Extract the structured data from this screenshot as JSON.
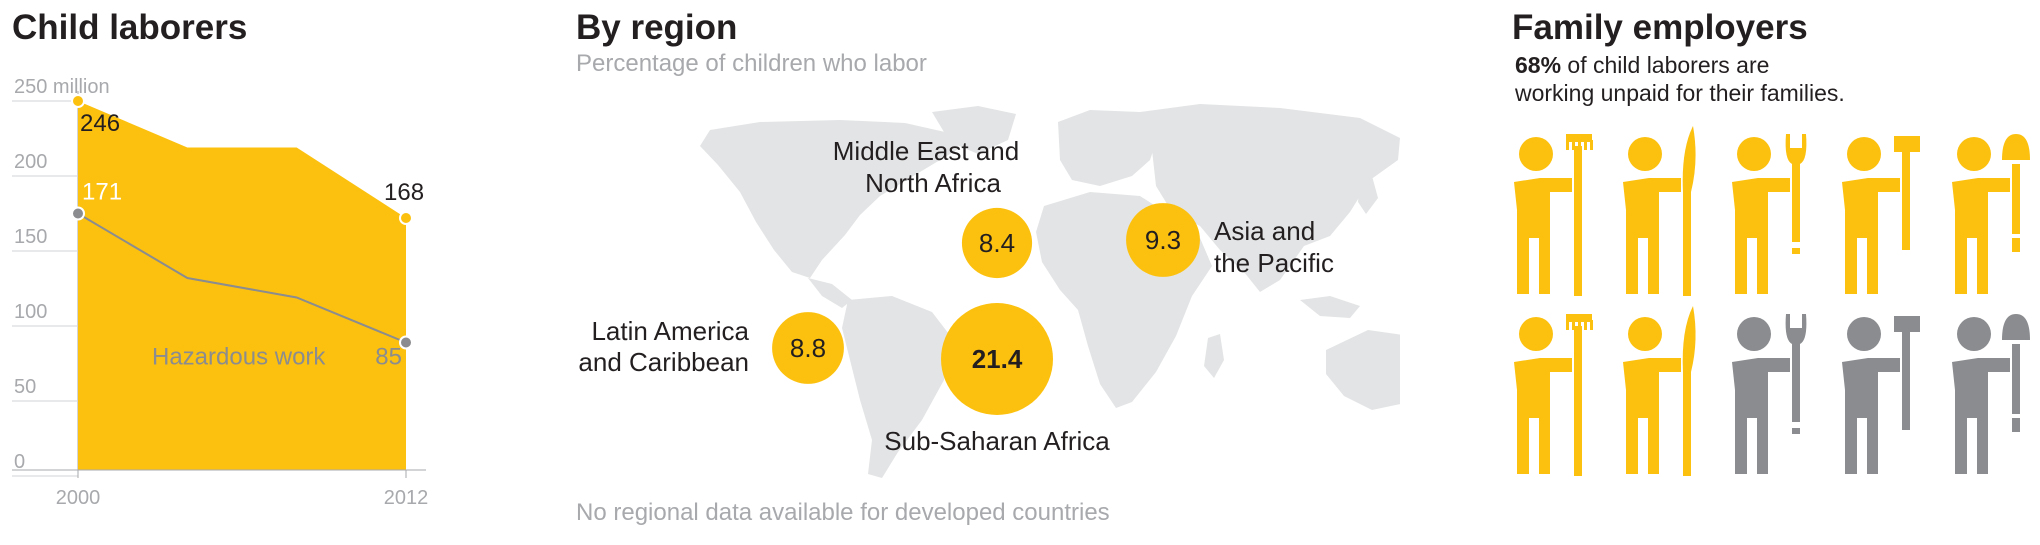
{
  "panels": {
    "laborers": {
      "title": "Child laborers"
    },
    "region": {
      "title": "By region",
      "subtitle": "Percentage of children who labor",
      "footnote": "No regional data available for developed countries"
    },
    "family": {
      "title": "Family employers",
      "text_bold": "68%",
      "text_rest": " of child laborers are",
      "text_line2": "working unpaid for their families."
    }
  },
  "colors": {
    "accent": "#fcc10f",
    "hazard": "#8a8c8f",
    "axis": "#a7a9ac",
    "map": "#e3e4e5",
    "text": "#231f20"
  },
  "chart_data": [
    {
      "type": "area",
      "title": "Child laborers",
      "ylabel": "",
      "xlabel": "",
      "x": [
        2000,
        2004,
        2008,
        2012
      ],
      "x_tick_labels": [
        "2000",
        "2012"
      ],
      "y_ticks": [
        0,
        50,
        100,
        150,
        200,
        250
      ],
      "y_tick_labels": [
        "0",
        "50",
        "100",
        "150",
        "200",
        "250 million"
      ],
      "ylim": [
        0,
        250
      ],
      "series": [
        {
          "name": "",
          "values": [
            246,
            215,
            215,
            168
          ],
          "style": "area"
        },
        {
          "name": "Hazardous work",
          "values": [
            171,
            128,
            115,
            85
          ],
          "style": "line"
        }
      ],
      "point_labels": [
        {
          "series": 0,
          "index": 0,
          "text": "246"
        },
        {
          "series": 0,
          "index": 3,
          "text": "168"
        },
        {
          "series": 1,
          "index": 0,
          "text": "171"
        },
        {
          "series": 1,
          "index": 3,
          "text": "85"
        }
      ],
      "grid": false
    },
    {
      "type": "bubble",
      "title": "By region",
      "subtitle": "Percentage of children who labor",
      "regions": [
        {
          "name": "Middle East and North Africa",
          "value": 8.4
        },
        {
          "name": "Asia and the Pacific",
          "value": 9.3
        },
        {
          "name": "Latin America and Caribbean",
          "value": 8.8
        },
        {
          "name": "Sub-Saharan Africa",
          "value": 21.4
        }
      ],
      "labels": {
        "mena": [
          "Middle East and",
          "North Africa"
        ],
        "asia": [
          "Asia and",
          "the Pacific"
        ],
        "latam": [
          "Latin America",
          "and Caribbean"
        ],
        "ssa": [
          "Sub-Saharan Africa"
        ]
      },
      "footnote": "No regional data available for developed countries"
    },
    {
      "type": "pictogram",
      "title": "Family employers",
      "value_percent": 68,
      "rows": [
        {
          "tools": [
            "rake",
            "sickle",
            "wrench",
            "hammer",
            "shovel"
          ],
          "colors": [
            "accent",
            "accent",
            "accent",
            "accent",
            "accent"
          ]
        },
        {
          "tools": [
            "rake",
            "sickle",
            "wrench",
            "hammer",
            "shovel"
          ],
          "colors": [
            "accent",
            "accent",
            "gray",
            "gray",
            "gray"
          ]
        }
      ]
    }
  ]
}
